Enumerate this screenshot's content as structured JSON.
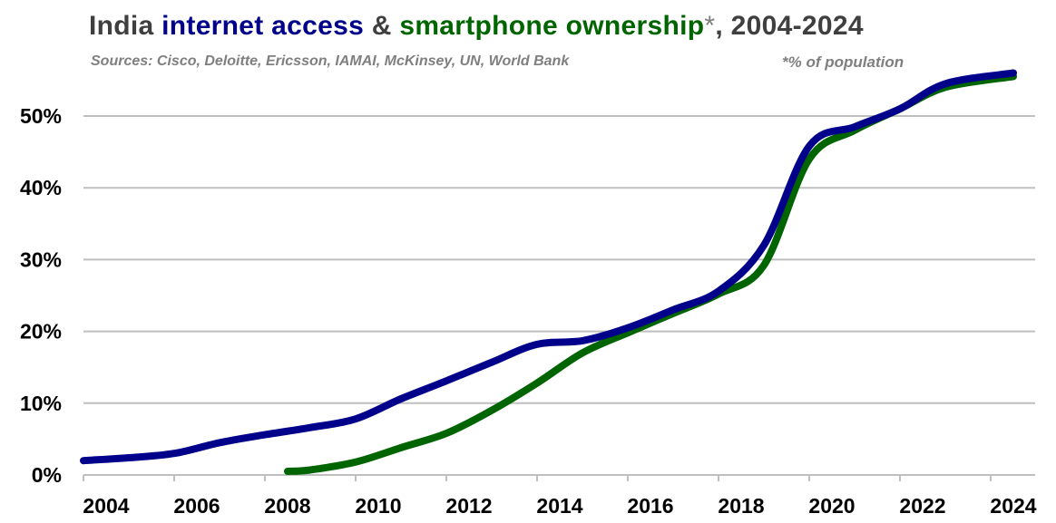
{
  "title": {
    "part1": "India ",
    "part2": "internet access",
    "part3": " & ",
    "part4": "smartphone ownership",
    "part5": "*",
    "part6": ", 2004-2024"
  },
  "subtitle": "Sources: Cisco, Deloitte, Ericsson, IAMAI, McKinsey, UN, World Bank",
  "note": "*% of population",
  "colors": {
    "internet": "#00008b",
    "smartphone": "#006400",
    "grid": "#bfbfbf",
    "text": "#3f3f3f",
    "muted": "#7f7f7f"
  },
  "chart_data": {
    "type": "line",
    "title": "India internet access & smartphone ownership*, 2004-2024",
    "subtitle": "Sources: Cisco, Deloitte, Ericsson, IAMAI, McKinsey, UN, World Bank",
    "xlabel": "",
    "ylabel": "",
    "xlim": [
      2004,
      2024.6
    ],
    "ylim": [
      0,
      55
    ],
    "x_ticks": [
      2004,
      2006,
      2008,
      2010,
      2012,
      2014,
      2016,
      2018,
      2020,
      2022,
      2024
    ],
    "y_ticks": [
      0,
      10,
      20,
      30,
      40,
      50
    ],
    "y_tick_labels": [
      "0%",
      "10%",
      "20%",
      "30%",
      "40%",
      "50%"
    ],
    "grid": "horizontal",
    "legend": "none (series named in title)",
    "series": [
      {
        "name": "internet access",
        "color": "#00008b",
        "x": [
          2004,
          2005,
          2006,
          2007,
          2008,
          2009,
          2010,
          2011,
          2012,
          2013,
          2014,
          2015,
          2016,
          2017,
          2018,
          2019,
          2020,
          2021,
          2022,
          2023,
          2024.5
        ],
        "y": [
          2.0,
          2.4,
          3.0,
          4.5,
          5.6,
          6.6,
          7.8,
          10.6,
          13.1,
          15.7,
          18.2,
          18.7,
          20.5,
          23.0,
          25.6,
          32.0,
          45.8,
          48.5,
          51.0,
          54.5,
          56.0
        ]
      },
      {
        "name": "smartphone ownership",
        "color": "#006400",
        "x": [
          2008.5,
          2009,
          2010,
          2011,
          2012,
          2013,
          2014,
          2015,
          2016,
          2017,
          2018,
          2019,
          2020,
          2021,
          2022,
          2023,
          2024.5
        ],
        "y": [
          0.5,
          0.7,
          1.8,
          3.8,
          5.8,
          9.0,
          12.8,
          17.0,
          19.8,
          22.5,
          25.2,
          29.2,
          44.0,
          48.0,
          51.0,
          54.0,
          55.5
        ]
      }
    ]
  }
}
